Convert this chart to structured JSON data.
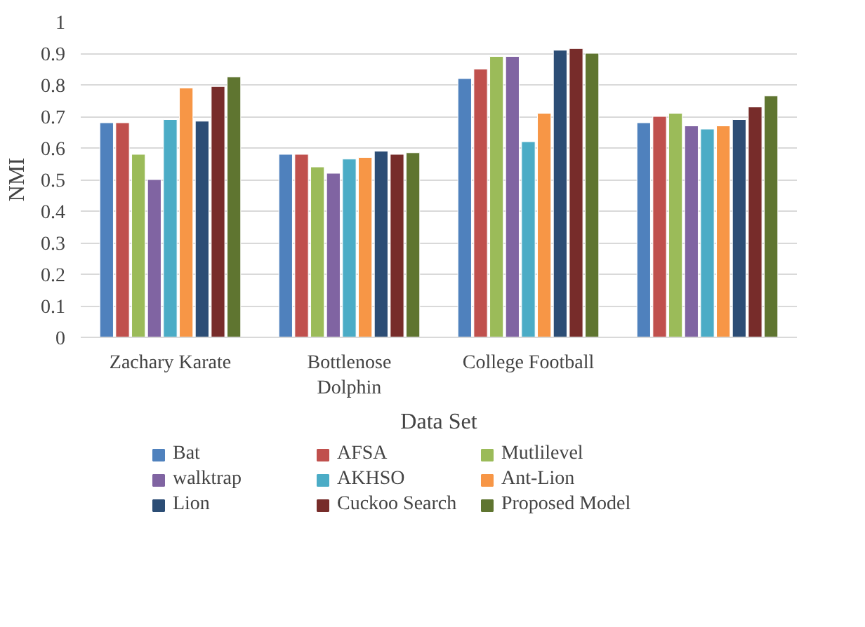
{
  "chart_data": {
    "type": "bar",
    "xlabel": "Data Set",
    "ylabel": "NMI",
    "categories": [
      "Zachary Karate",
      "Bottlenose\nDolphin",
      "College Football",
      null
    ],
    "series": [
      {
        "name": "Bat",
        "color": "#4f81bd",
        "values": [
          0.68,
          0.58,
          0.82,
          0.68
        ]
      },
      {
        "name": "AFSA",
        "color": "#c0504d",
        "values": [
          0.68,
          0.58,
          0.85,
          0.7
        ]
      },
      {
        "name": "Mutlilevel",
        "color": "#9bbb59",
        "values": [
          0.58,
          0.54,
          0.89,
          0.71
        ]
      },
      {
        "name": "walktrap",
        "color": "#8064a2",
        "values": [
          0.5,
          0.52,
          0.89,
          0.67
        ]
      },
      {
        "name": "AKHSO",
        "color": "#4bacc6",
        "values": [
          0.69,
          0.565,
          0.62,
          0.66
        ]
      },
      {
        "name": "Ant-Lion",
        "color": "#f79646",
        "values": [
          0.79,
          0.57,
          0.71,
          0.67
        ]
      },
      {
        "name": "Lion",
        "color": "#2c4d75",
        "values": [
          0.685,
          0.59,
          0.91,
          0.69
        ]
      },
      {
        "name": "Cuckoo Search",
        "color": "#772c2a",
        "values": [
          0.795,
          0.58,
          0.915,
          0.73
        ]
      },
      {
        "name": "Proposed Model",
        "color": "#5f7530",
        "values": [
          0.825,
          0.585,
          0.9,
          0.765
        ]
      }
    ],
    "ylim": [
      0,
      1
    ],
    "yticks": [
      0,
      0.1,
      0.2,
      0.3,
      0.4,
      0.5,
      0.6,
      0.7,
      0.8,
      0.9,
      1
    ],
    "grid": "y",
    "legend": "bottom"
  }
}
